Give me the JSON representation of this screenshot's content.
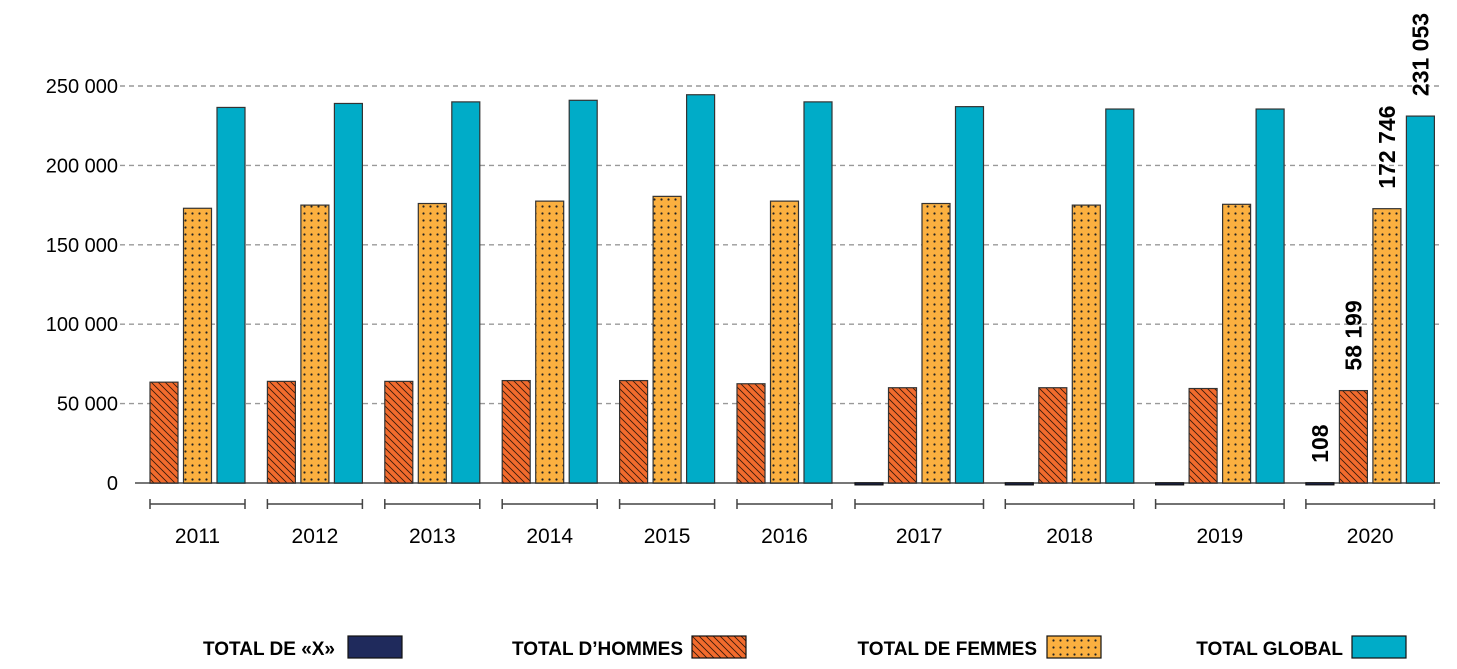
{
  "chart_data": {
    "type": "bar",
    "categories": [
      "2011",
      "2012",
      "2013",
      "2014",
      "2015",
      "2016",
      "2017",
      "2018",
      "2019",
      "2020"
    ],
    "ylim": [
      0,
      250000
    ],
    "yticks": [
      0,
      50000,
      100000,
      150000,
      200000,
      250000
    ],
    "ytick_labels": [
      "0",
      "50 000",
      "100 000",
      "150 000",
      "200 000",
      "250 000"
    ],
    "grid": true,
    "legend_position": "bottom",
    "series": [
      {
        "name": "TOTAL DE «X»",
        "color": "#1f2a5c",
        "pattern": "solid",
        "values": [
          null,
          null,
          null,
          null,
          null,
          null,
          70,
          75,
          80,
          108
        ]
      },
      {
        "name": "TOTAL D’HOMMES",
        "color": "#f26b2d",
        "pattern": "diagonal-hatch",
        "values": [
          63500,
          64000,
          64000,
          64500,
          64500,
          62500,
          60000,
          60000,
          59500,
          58199
        ]
      },
      {
        "name": "TOTAL DE FEMMES",
        "color": "#fbb040",
        "pattern": "dots",
        "values": [
          173000,
          175000,
          176000,
          177500,
          180500,
          177500,
          176000,
          175000,
          175500,
          172746
        ]
      },
      {
        "name": "TOTAL GLOBAL",
        "color": "#00acc8",
        "pattern": "solid",
        "values": [
          236500,
          239000,
          240000,
          241000,
          244500,
          240000,
          237000,
          235500,
          235500,
          231053
        ]
      }
    ],
    "data_labels": {
      "category": "2020",
      "labels": [
        "108",
        "58 199",
        "172 746",
        "231 053"
      ]
    }
  }
}
